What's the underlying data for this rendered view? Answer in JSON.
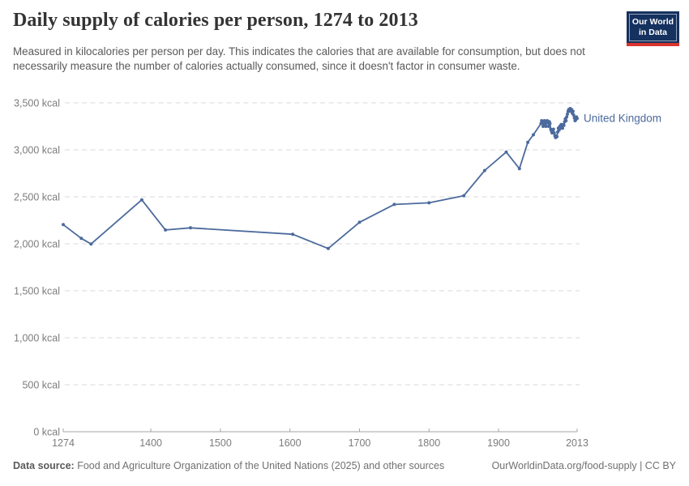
{
  "header": {
    "title": "Daily supply of calories per person, 1274 to 2013",
    "subtitle": "Measured in kilocalories per person per day. This indicates the calories that are available for consumption, but does not necessarily measure the number of calories actually consumed, since it doesn't factor in consumer waste.",
    "logo": {
      "line1": "Our World",
      "line2": "in Data",
      "bg_color": "#15315f",
      "accent_color": "#d8352e"
    }
  },
  "chart_data": {
    "type": "line",
    "title": "Daily supply of calories per person, 1274 to 2013",
    "xlabel": "",
    "ylabel": "",
    "xlim": [
      1274,
      2013
    ],
    "ylim": [
      0,
      3500
    ],
    "x_ticks": [
      1274,
      1400,
      1500,
      1600,
      1700,
      1800,
      1900,
      2013
    ],
    "y_ticks": [
      0,
      500,
      1000,
      1500,
      2000,
      2500,
      3000,
      3500
    ],
    "y_tick_suffix": " kcal",
    "grid": "horizontal-dashed",
    "legend_position": "end-of-line-label",
    "colors": {
      "line": "#4c6a9c",
      "grid": "#d9d9d9",
      "axis": "#a5a5a5",
      "tick_text": "#7c7c7c"
    },
    "series": [
      {
        "name": "United Kingdom",
        "color": "#4c6a9c",
        "points": [
          [
            1274,
            2204
          ],
          [
            1300,
            2058
          ],
          [
            1314,
            1998
          ],
          [
            1387,
            2468
          ],
          [
            1421,
            2147
          ],
          [
            1457,
            2170
          ],
          [
            1604,
            2102
          ],
          [
            1655,
            1950
          ],
          [
            1700,
            2229
          ],
          [
            1750,
            2419
          ],
          [
            1800,
            2436
          ],
          [
            1850,
            2512
          ],
          [
            1880,
            2780
          ],
          [
            1911,
            2977
          ],
          [
            1930,
            2800
          ],
          [
            1942,
            3080
          ],
          [
            1950,
            3160
          ],
          [
            1961,
            3280
          ],
          [
            1962,
            3310
          ],
          [
            1963,
            3290
          ],
          [
            1964,
            3250
          ],
          [
            1965,
            3280
          ],
          [
            1966,
            3310
          ],
          [
            1967,
            3270
          ],
          [
            1968,
            3250
          ],
          [
            1969,
            3290
          ],
          [
            1970,
            3310
          ],
          [
            1971,
            3290
          ],
          [
            1972,
            3250
          ],
          [
            1973,
            3300
          ],
          [
            1974,
            3280
          ],
          [
            1975,
            3220
          ],
          [
            1976,
            3200
          ],
          [
            1977,
            3180
          ],
          [
            1978,
            3200
          ],
          [
            1979,
            3220
          ],
          [
            1980,
            3180
          ],
          [
            1981,
            3150
          ],
          [
            1982,
            3130
          ],
          [
            1983,
            3150
          ],
          [
            1984,
            3140
          ],
          [
            1985,
            3190
          ],
          [
            1986,
            3230
          ],
          [
            1987,
            3210
          ],
          [
            1988,
            3250
          ],
          [
            1989,
            3230
          ],
          [
            1990,
            3270
          ],
          [
            1991,
            3240
          ],
          [
            1992,
            3230
          ],
          [
            1993,
            3270
          ],
          [
            1994,
            3260
          ],
          [
            1995,
            3300
          ],
          [
            1996,
            3330
          ],
          [
            1997,
            3310
          ],
          [
            1998,
            3350
          ],
          [
            1999,
            3380
          ],
          [
            2000,
            3410
          ],
          [
            2001,
            3430
          ],
          [
            2002,
            3410
          ],
          [
            2003,
            3440
          ],
          [
            2004,
            3420
          ],
          [
            2005,
            3430
          ],
          [
            2006,
            3390
          ],
          [
            2007,
            3410
          ],
          [
            2008,
            3370
          ],
          [
            2009,
            3340
          ],
          [
            2010,
            3310
          ],
          [
            2011,
            3320
          ],
          [
            2012,
            3350
          ],
          [
            2013,
            3335
          ]
        ]
      }
    ]
  },
  "footer": {
    "datasource_label": "Data source:",
    "datasource_text": " Food and Agriculture Organization of the United Nations (2025) and other sources",
    "link": "OurWorldinData.org/food-supply | CC BY"
  }
}
